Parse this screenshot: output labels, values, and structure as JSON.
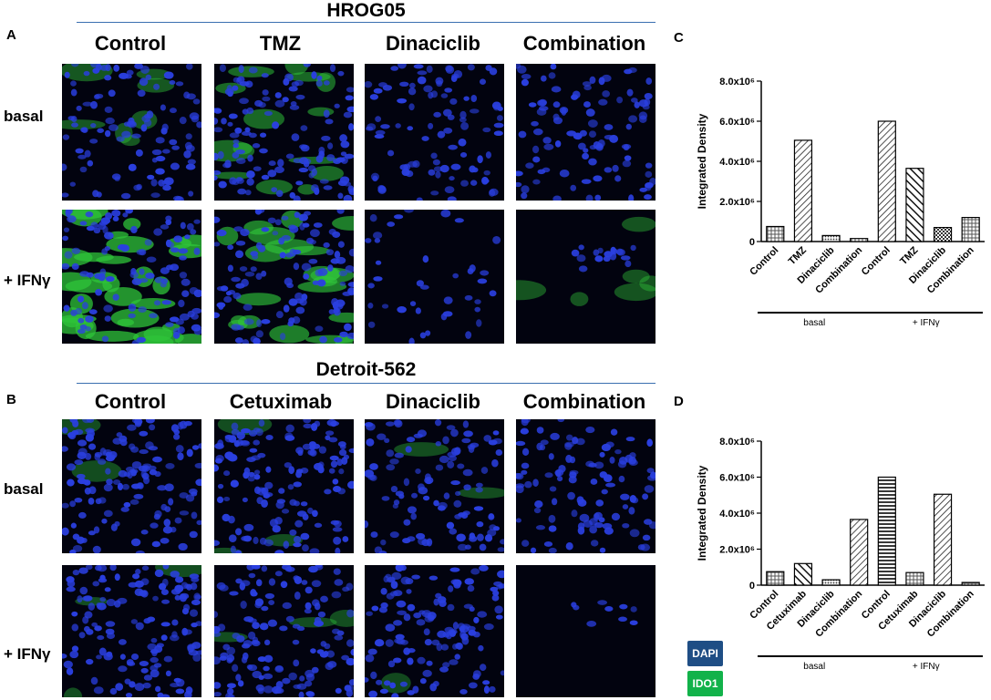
{
  "panels": {
    "a": {
      "letter": "A"
    },
    "b": {
      "letter": "B"
    },
    "c": {
      "letter": "C"
    },
    "d": {
      "letter": "D"
    }
  },
  "hrog": {
    "title": "HROG05",
    "columns": [
      "Control",
      "TMZ",
      "Dinaciclib",
      "Combination"
    ],
    "rows": [
      "basal",
      "+ IFNγ"
    ]
  },
  "detroit": {
    "title": "Detroit-562",
    "columns": [
      "Control",
      "Cetuximab",
      "Dinaciclib",
      "Combination"
    ],
    "rows": [
      "basal",
      "+ IFNγ"
    ]
  },
  "legend": {
    "dapi": {
      "label": "DAPI",
      "color": "#1f4e85"
    },
    "ido1": {
      "label": "IDO1",
      "color": "#12b24a"
    }
  },
  "chart_data": [
    {
      "type": "bar",
      "panel": "C",
      "ylabel": "Integrated Density",
      "ylim": [
        0,
        8000000
      ],
      "yticks": [
        "0",
        "2.0x10⁶",
        "4.0x10⁶",
        "6.0x10⁶",
        "8.0x10⁶"
      ],
      "tick_values": [
        0,
        2000000,
        4000000,
        6000000,
        8000000
      ],
      "categories": [
        "Control",
        "TMZ",
        "Dinaciclib",
        "Combination",
        "Control",
        "TMZ",
        "Dinaciclib",
        "Combination"
      ],
      "values": [
        750000,
        5050000,
        300000,
        150000,
        6000000,
        3650000,
        700000,
        1200000
      ],
      "patterns": [
        "grid",
        "diag-r",
        "dots",
        "grid",
        "diag-r",
        "diag-l-bold",
        "check",
        "grid"
      ],
      "groups": [
        {
          "label": "basal",
          "from": 0,
          "to": 3
        },
        {
          "label": "+ IFNγ",
          "from": 4,
          "to": 7
        }
      ]
    },
    {
      "type": "bar",
      "panel": "D",
      "ylabel": "Integrated Density",
      "ylim": [
        0,
        8000000
      ],
      "yticks": [
        "0",
        "2.0x10⁶",
        "4.0x10⁶",
        "6.0x10⁶",
        "8.0x10⁶"
      ],
      "tick_values": [
        0,
        2000000,
        4000000,
        6000000,
        8000000
      ],
      "categories": [
        "Control",
        "Cetuximab",
        "Dinaciclib",
        "Combination",
        "Control",
        "Cetuximab",
        "Dinaciclib",
        "Combination"
      ],
      "values": [
        750000,
        1200000,
        300000,
        3650000,
        6000000,
        700000,
        5050000,
        150000
      ],
      "patterns": [
        "grid",
        "diag-l-bold",
        "dots",
        "diag-r",
        "hstripe",
        "grid",
        "diag-r",
        "grid"
      ],
      "groups": [
        {
          "label": "basal",
          "from": 0,
          "to": 3
        },
        {
          "label": "+ IFNγ",
          "from": 4,
          "to": 7
        }
      ]
    }
  ]
}
